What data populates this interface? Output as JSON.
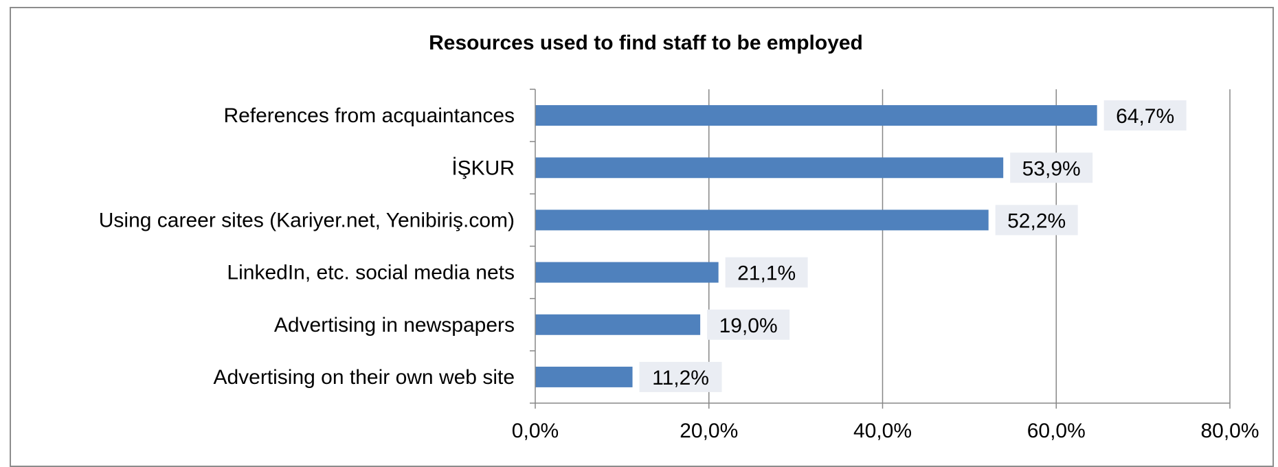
{
  "chart_data": {
    "type": "bar",
    "orientation": "horizontal",
    "title": "Resources used to find staff to be employed",
    "categories": [
      "References from acquaintances",
      "İŞKUR",
      "Using career sites (Kariyer.net, Yenibiriş.com)",
      "LinkedIn, etc. social media nets",
      "Advertising in newspapers",
      "Advertising on their own web site"
    ],
    "values": [
      64.7,
      53.9,
      52.2,
      21.1,
      19.0,
      11.2
    ],
    "data_labels": [
      "64,7%",
      "53,9%",
      "52,2%",
      "21,1%",
      "19,0%",
      "11,2%"
    ],
    "xlim": [
      0,
      80
    ],
    "x_ticks": [
      0,
      20,
      40,
      60,
      80
    ],
    "x_tick_labels": [
      "0,0%",
      "20,0%",
      "40,0%",
      "60,0%",
      "80,0%"
    ],
    "xlabel": "",
    "ylabel": "",
    "grid": true,
    "legend": "none",
    "colors": {
      "bar": "#4f81bd",
      "gridline": "#878787",
      "label_background": "#eaedf3",
      "frame": "#8c8c8c"
    }
  }
}
